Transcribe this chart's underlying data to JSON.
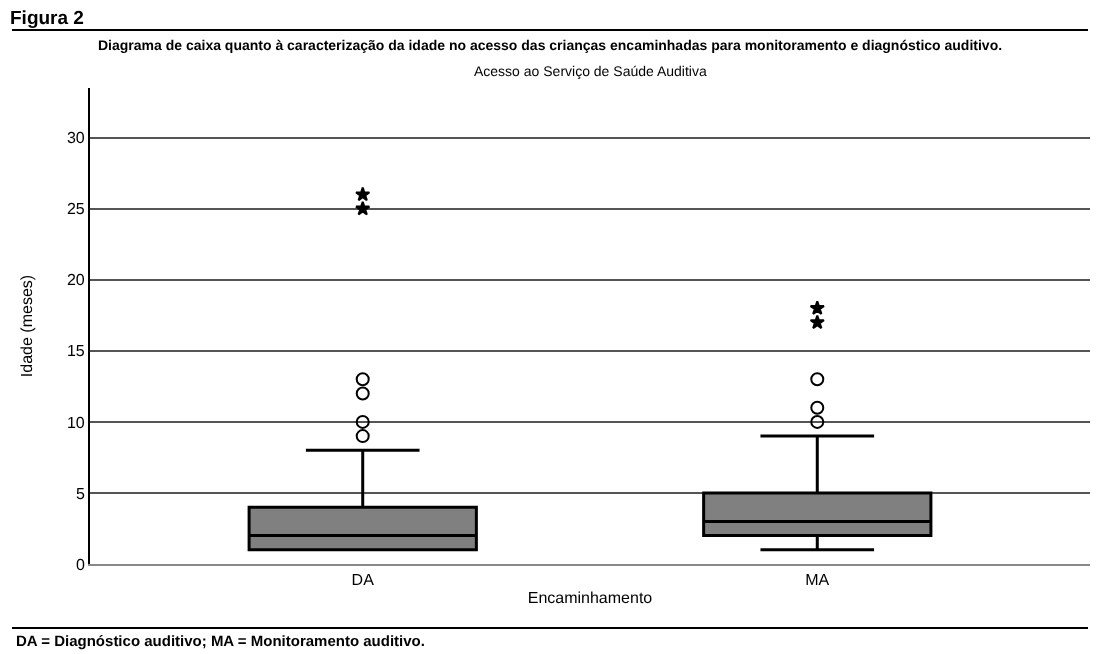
{
  "chart_data": {
    "type": "box",
    "title": "Figura 2",
    "subtitle": "Diagrama de caixa quanto à caracterização da idade no acesso das crianças encaminhadas para monitoramento e diagnóstico auditivo.",
    "xlabel": "Encaminhamento",
    "ylabel": "Idade (meses)",
    "annotations": [
      "Acesso ao Serviço de Saúde Auditiva",
      "DA = Diagnóstico auditivo; MA = Monitoramento auditivo."
    ],
    "categories": [
      "DA",
      "MA"
    ],
    "boxes": [
      {
        "low": 1,
        "q1": 1,
        "median": 2,
        "q3": 4,
        "high": 8,
        "outliers": [
          9,
          10,
          12,
          13
        ]
      },
      {
        "low": 1,
        "q1": 2,
        "median": 3,
        "q3": 5,
        "high": 9,
        "outliers": [
          10,
          11,
          13
        ]
      }
    ],
    "color": "#808080",
    "series": [
      {
        "type": "scatter",
        "marker": "star",
        "color": "#000000",
        "x": [
          "DA",
          "DA",
          "MA",
          "MA"
        ],
        "values": [
          25,
          26,
          17,
          18
        ]
      }
    ],
    "ylim": [
      0,
      33.5
    ],
    "yticks": [
      0,
      5,
      10,
      15,
      20,
      25,
      30
    ],
    "grid": "y"
  }
}
